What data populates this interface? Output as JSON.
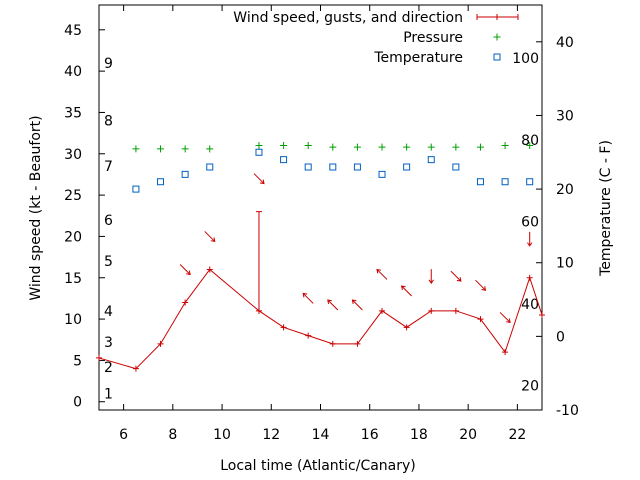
{
  "chart_data": {
    "type": "line",
    "title": "",
    "xlabel": "Local time (Atlantic/Canary)",
    "ylabel": "Wind speed (kt - Beaufort)",
    "y2label": "Temperature (C - F)",
    "xlim": [
      5,
      23
    ],
    "ylim": [
      -1,
      48
    ],
    "y2lim": [
      -10,
      45
    ],
    "x_ticks": [
      6,
      8,
      10,
      12,
      14,
      16,
      18,
      20,
      22
    ],
    "y_ticks": [
      0,
      5,
      10,
      15,
      20,
      25,
      30,
      35,
      40,
      45
    ],
    "y2_ticks": [
      -10,
      0,
      10,
      20,
      30,
      40
    ],
    "beaufort_labels": [
      {
        "label": "1",
        "y": 1
      },
      {
        "label": "2",
        "y": 4.2
      },
      {
        "label": "3",
        "y": 7.2
      },
      {
        "label": "4",
        "y": 11
      },
      {
        "label": "5",
        "y": 17
      },
      {
        "label": "6",
        "y": 22
      },
      {
        "label": "7",
        "y": 28.5
      },
      {
        "label": "8",
        "y": 34
      },
      {
        "label": "9",
        "y": 41
      }
    ],
    "fahrenheit_labels": [
      {
        "label": "20",
        "y2": -6.7
      },
      {
        "label": "40",
        "y2": 4.4
      },
      {
        "label": "60",
        "y2": 15.6
      },
      {
        "label": "80",
        "y2": 26.7
      },
      {
        "label": "100",
        "y2": 37.8
      }
    ],
    "legend": [
      {
        "label": "Wind speed, gusts, and direction",
        "color": "#cc0000",
        "marker": "errorbar"
      },
      {
        "label": "Pressure",
        "color": "#00a000",
        "marker": "plus"
      },
      {
        "label": "Temperature",
        "color": "#0060c0",
        "marker": "square"
      }
    ],
    "wind": {
      "x": [
        5,
        6.5,
        7.5,
        8.5,
        9.5,
        11.5,
        12.5,
        13.5,
        14.5,
        15.5,
        16.5,
        17.5,
        18.5,
        19.5,
        20.5,
        21.5,
        22.5,
        23
      ],
      "y": [
        5.3,
        4,
        7,
        12,
        16,
        11,
        9,
        8,
        7,
        7,
        11,
        9,
        11,
        11,
        10,
        6,
        15,
        10.5
      ],
      "color": "#cc0000"
    },
    "gusts": [
      {
        "x": 11.5,
        "low": 11,
        "high": 23
      }
    ],
    "wind_direction_arrows": [
      {
        "x": 8.5,
        "y": 16,
        "dir": "down-right"
      },
      {
        "x": 9.5,
        "y": 20,
        "dir": "down-right"
      },
      {
        "x": 11.5,
        "y": 27,
        "dir": "down-right"
      },
      {
        "x": 13.5,
        "y": 12.5,
        "dir": "up-left"
      },
      {
        "x": 14.5,
        "y": 11.7,
        "dir": "up-left"
      },
      {
        "x": 15.5,
        "y": 11.7,
        "dir": "up-left"
      },
      {
        "x": 16.5,
        "y": 15.4,
        "dir": "up-left"
      },
      {
        "x": 17.5,
        "y": 13.4,
        "dir": "up-left"
      },
      {
        "x": 18.5,
        "y": 15.2,
        "dir": "down"
      },
      {
        "x": 19.5,
        "y": 15.2,
        "dir": "down-right"
      },
      {
        "x": 20.5,
        "y": 14.1,
        "dir": "down-right"
      },
      {
        "x": 21.5,
        "y": 10.2,
        "dir": "down-right"
      },
      {
        "x": 22.5,
        "y": 19.7,
        "dir": "down"
      }
    ],
    "pressure": {
      "x": [
        6.5,
        7.5,
        8.5,
        9.5,
        11.5,
        12.5,
        13.5,
        14.5,
        15.5,
        16.5,
        17.5,
        18.5,
        19.5,
        20.5,
        21.5,
        22.5
      ],
      "y": [
        30.6,
        30.6,
        30.6,
        30.6,
        31,
        31,
        31,
        30.8,
        30.8,
        30.8,
        30.8,
        30.8,
        30.8,
        30.8,
        31,
        31
      ],
      "color": "#00a000"
    },
    "temperature": {
      "x": [
        6.5,
        7.5,
        8.5,
        9.5,
        11.5,
        12.5,
        13.5,
        14.5,
        15.5,
        16.5,
        17.5,
        18.5,
        19.5,
        20.5,
        21.5,
        22.5
      ],
      "y2": [
        20,
        21,
        22,
        23,
        25,
        24,
        23,
        23,
        23,
        22,
        23,
        24,
        23,
        21,
        21,
        21
      ],
      "color": "#0060c0"
    }
  }
}
